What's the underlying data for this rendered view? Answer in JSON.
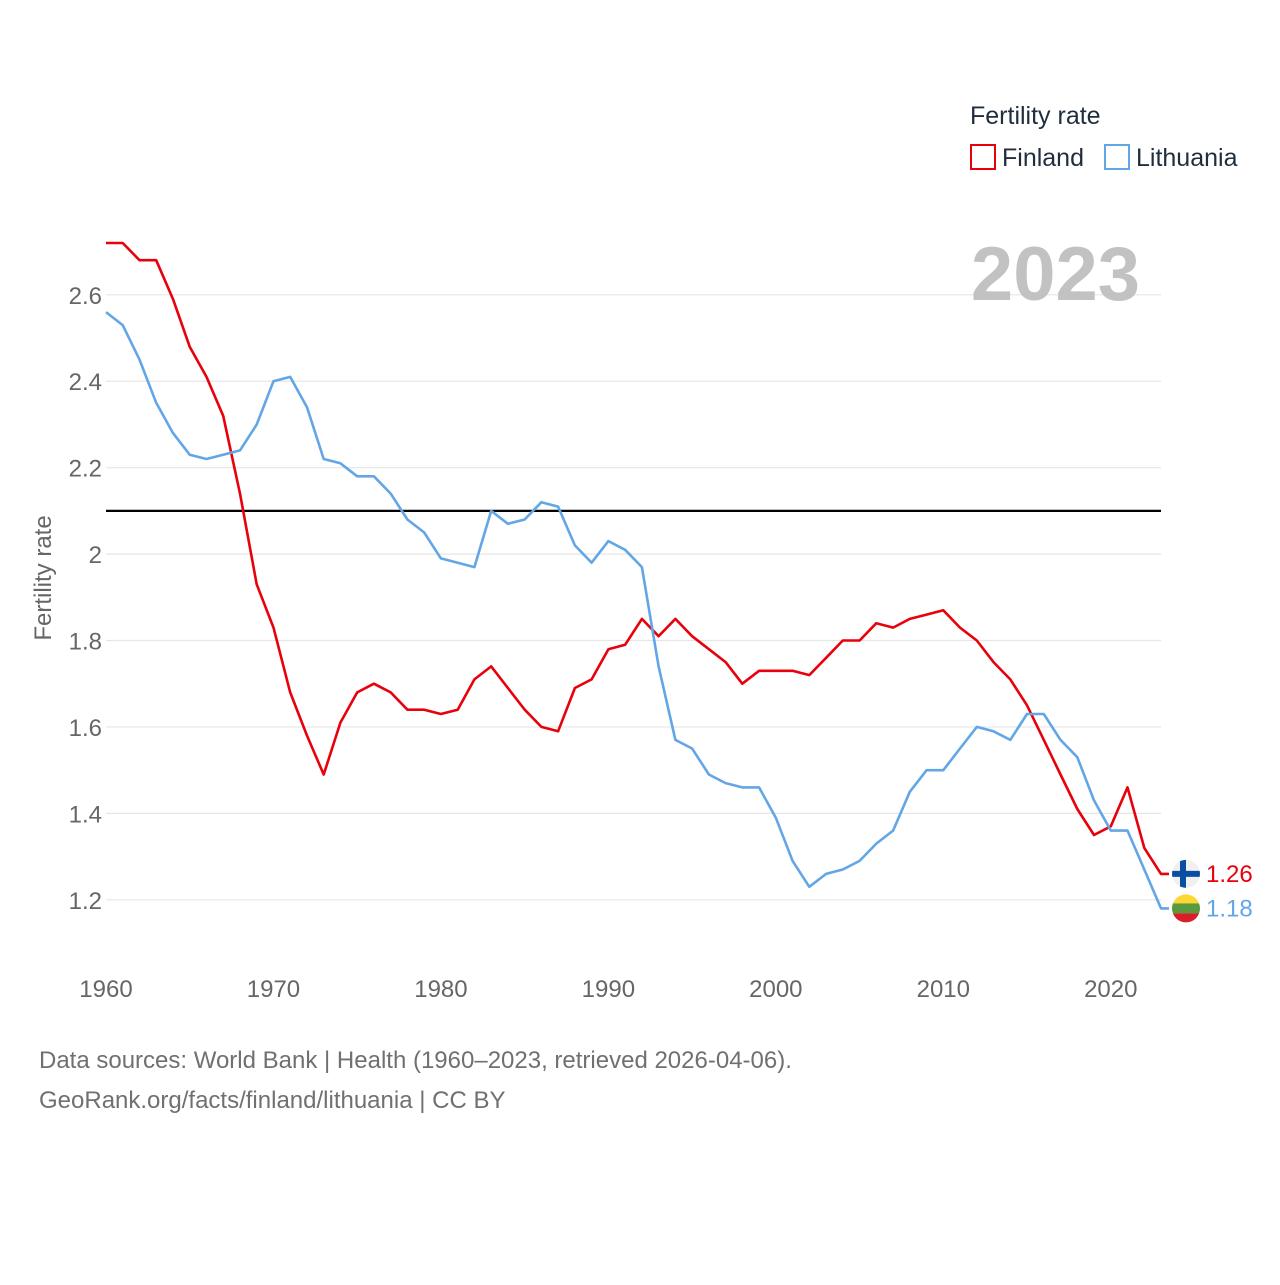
{
  "chart_data": {
    "type": "line",
    "legend_title": "Fertility rate",
    "ylabel": "Fertility rate",
    "year_label": "2023",
    "x_ticks": [
      "1960",
      "1970",
      "1980",
      "1990",
      "2000",
      "2010",
      "2020"
    ],
    "y_ticks": [
      "1.2",
      "1.4",
      "1.6",
      "1.8",
      "2",
      "2.2",
      "2.4",
      "2.6"
    ],
    "xlim": [
      1960,
      2023
    ],
    "ylim": [
      1.1,
      2.75
    ],
    "reference_line": 2.1,
    "source_line1": "Data sources: World Bank | Health (1960–2023, retrieved 2026-04-06).",
    "source_line2": "GeoRank.org/facts/finland/lithuania | CC BY",
    "series": [
      {
        "name": "Finland",
        "color": "#e8000b",
        "end_label": "1.26",
        "flag": "finland-flag",
        "x": [
          1960,
          1961,
          1962,
          1963,
          1964,
          1965,
          1966,
          1967,
          1968,
          1969,
          1970,
          1971,
          1972,
          1973,
          1974,
          1975,
          1976,
          1977,
          1978,
          1979,
          1980,
          1981,
          1982,
          1983,
          1984,
          1985,
          1986,
          1987,
          1988,
          1989,
          1990,
          1991,
          1992,
          1993,
          1994,
          1995,
          1996,
          1997,
          1998,
          1999,
          2000,
          2001,
          2002,
          2003,
          2004,
          2005,
          2006,
          2007,
          2008,
          2009,
          2010,
          2011,
          2012,
          2013,
          2014,
          2015,
          2016,
          2017,
          2018,
          2019,
          2020,
          2021,
          2022,
          2023
        ],
        "values": [
          2.72,
          2.72,
          2.68,
          2.68,
          2.59,
          2.48,
          2.41,
          2.32,
          2.14,
          1.93,
          1.83,
          1.68,
          1.58,
          1.49,
          1.61,
          1.68,
          1.7,
          1.68,
          1.64,
          1.64,
          1.63,
          1.64,
          1.71,
          1.74,
          1.69,
          1.64,
          1.6,
          1.59,
          1.69,
          1.71,
          1.78,
          1.79,
          1.85,
          1.81,
          1.85,
          1.81,
          1.78,
          1.75,
          1.7,
          1.73,
          1.73,
          1.73,
          1.72,
          1.76,
          1.8,
          1.8,
          1.84,
          1.83,
          1.85,
          1.86,
          1.87,
          1.83,
          1.8,
          1.75,
          1.71,
          1.65,
          1.57,
          1.49,
          1.41,
          1.35,
          1.37,
          1.46,
          1.32,
          1.26
        ]
      },
      {
        "name": "Lithuania",
        "color": "#63a6e6",
        "end_label": "1.18",
        "flag": "lithuania-flag",
        "x": [
          1960,
          1961,
          1962,
          1963,
          1964,
          1965,
          1966,
          1967,
          1968,
          1969,
          1970,
          1971,
          1972,
          1973,
          1974,
          1975,
          1976,
          1977,
          1978,
          1979,
          1980,
          1981,
          1982,
          1983,
          1984,
          1985,
          1986,
          1987,
          1988,
          1989,
          1990,
          1991,
          1992,
          1993,
          1994,
          1995,
          1996,
          1997,
          1998,
          1999,
          2000,
          2001,
          2002,
          2003,
          2004,
          2005,
          2006,
          2007,
          2008,
          2009,
          2010,
          2011,
          2012,
          2013,
          2014,
          2015,
          2016,
          2017,
          2018,
          2019,
          2020,
          2021,
          2022,
          2023
        ],
        "values": [
          2.56,
          2.53,
          2.45,
          2.35,
          2.28,
          2.23,
          2.22,
          2.23,
          2.24,
          2.3,
          2.4,
          2.41,
          2.34,
          2.22,
          2.21,
          2.18,
          2.18,
          2.14,
          2.08,
          2.05,
          1.99,
          1.98,
          1.97,
          2.1,
          2.07,
          2.08,
          2.12,
          2.11,
          2.02,
          1.98,
          2.03,
          2.01,
          1.97,
          1.74,
          1.57,
          1.55,
          1.49,
          1.47,
          1.46,
          1.46,
          1.39,
          1.29,
          1.23,
          1.26,
          1.27,
          1.29,
          1.33,
          1.36,
          1.45,
          1.5,
          1.5,
          1.55,
          1.6,
          1.59,
          1.57,
          1.63,
          1.63,
          1.57,
          1.53,
          1.43,
          1.36,
          1.36,
          1.27,
          1.18
        ]
      }
    ]
  }
}
